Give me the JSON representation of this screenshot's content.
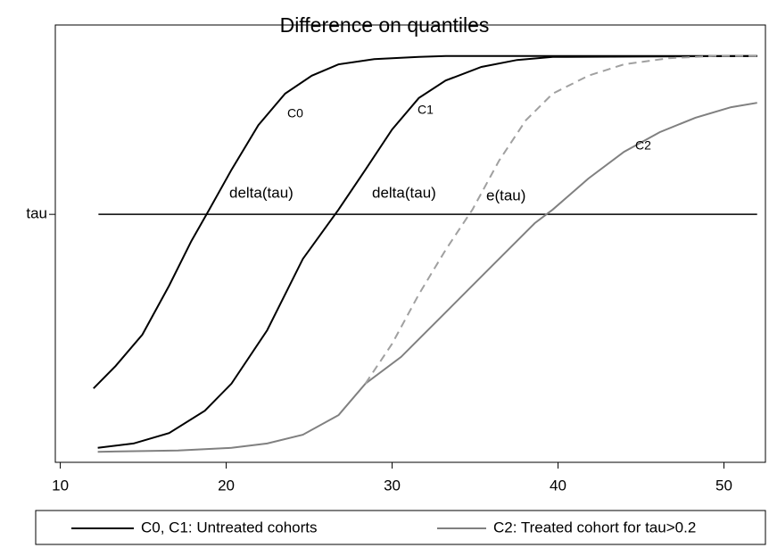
{
  "chart_data": {
    "type": "line",
    "title": "Difference on quantiles",
    "xlim": [
      9.7,
      52.5
    ],
    "ylim": [
      0,
      1
    ],
    "xticks": [
      10,
      20,
      30,
      40,
      50
    ],
    "yticks": [
      {
        "value": 0.567,
        "label": "tau"
      }
    ],
    "hline_x": [
      12.3,
      52
    ],
    "series": [
      {
        "name": "C0",
        "color": "#000000",
        "dashed": false,
        "x": [
          12,
          13.33,
          14.95,
          16.56,
          17.9,
          18.98,
          20.32,
          21.94,
          23.55,
          25.16,
          26.77,
          28.92,
          31.61,
          33.23,
          52
        ],
        "values": [
          0.169,
          0.22,
          0.292,
          0.404,
          0.506,
          0.578,
          0.669,
          0.771,
          0.843,
          0.884,
          0.91,
          0.922,
          0.927,
          0.929,
          0.929
        ]
      },
      {
        "name": "C1",
        "color": "#000000",
        "dashed": false,
        "x": [
          12.26,
          14.41,
          16.56,
          18.71,
          20.32,
          22.47,
          24.62,
          26.77,
          28.39,
          30,
          31.61,
          33.23,
          35.38,
          37.53,
          39.68,
          52
        ],
        "values": [
          0.033,
          0.043,
          0.067,
          0.118,
          0.18,
          0.302,
          0.465,
          0.578,
          0.669,
          0.761,
          0.833,
          0.873,
          0.904,
          0.92,
          0.927,
          0.929
        ]
      },
      {
        "name": "C2",
        "color": "#808080",
        "dashed": false,
        "x": [
          12.26,
          17.1,
          20.32,
          22.47,
          24.62,
          26.77,
          28.39,
          30.54,
          33.23,
          35.91,
          38.6,
          39.68,
          41.83,
          43.98,
          46.13,
          48.28,
          50.43,
          52
        ],
        "values": [
          0.024,
          0.027,
          0.033,
          0.043,
          0.063,
          0.108,
          0.18,
          0.241,
          0.343,
          0.445,
          0.547,
          0.578,
          0.649,
          0.71,
          0.755,
          0.788,
          0.812,
          0.822
        ]
      },
      {
        "color": "#a0a0a0",
        "dashed": true,
        "x": [
          28.39,
          30,
          31.61,
          33.23,
          34.84,
          36.45,
          38.06,
          39.68,
          41.83,
          43.98,
          46.67,
          49.35,
          52
        ],
        "values": [
          0.18,
          0.271,
          0.384,
          0.486,
          0.578,
          0.69,
          0.782,
          0.843,
          0.884,
          0.91,
          0.924,
          0.929,
          0.929
        ]
      }
    ],
    "annotations": [
      "delta(tau)",
      "delta(tau)",
      "e(tau)"
    ],
    "legend": [
      {
        "label": "C0, C1: Untreated cohorts",
        "color": "#000000"
      },
      {
        "label": "C2: Treated cohort for tau>0.2",
        "color": "#808080"
      }
    ]
  }
}
